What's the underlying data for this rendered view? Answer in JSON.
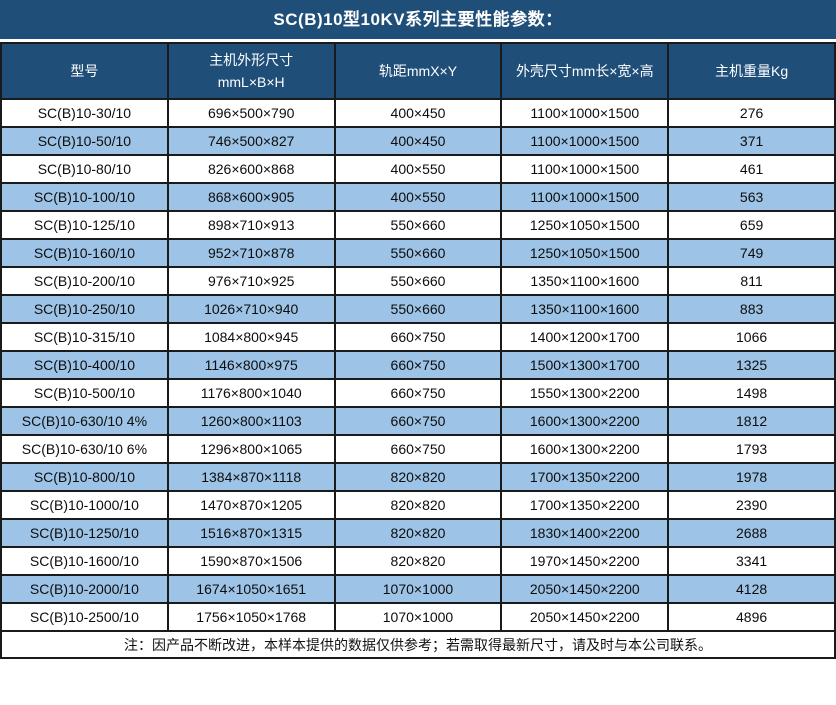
{
  "title": "SC(B)10型10KV系列主要性能参数：",
  "colors": {
    "header_bg": "#1F4E79",
    "alt_row_bg": "#9DC3E6",
    "border": "#1A1A1A",
    "header_text": "#FFFFFF",
    "body_text": "#0D0D0D"
  },
  "table": {
    "columns": [
      "型号",
      "主机外形尺寸\nmmL×B×H",
      "轨距mmX×Y",
      "外壳尺寸mm长×宽×高",
      "主机重量Kg"
    ],
    "rows": [
      [
        "SC(B)10-30/10",
        "696×500×790",
        "400×450",
        "1100×1000×1500",
        "276"
      ],
      [
        "SC(B)10-50/10",
        "746×500×827",
        "400×450",
        "1100×1000×1500",
        "371"
      ],
      [
        "SC(B)10-80/10",
        "826×600×868",
        "400×550",
        "1100×1000×1500",
        "461"
      ],
      [
        "SC(B)10-100/10",
        "868×600×905",
        "400×550",
        "1100×1000×1500",
        "563"
      ],
      [
        "SC(B)10-125/10",
        "898×710×913",
        "550×660",
        "1250×1050×1500",
        "659"
      ],
      [
        "SC(B)10-160/10",
        "952×710×878",
        "550×660",
        "1250×1050×1500",
        "749"
      ],
      [
        "SC(B)10-200/10",
        "976×710×925",
        "550×660",
        "1350×1100×1600",
        "811"
      ],
      [
        "SC(B)10-250/10",
        "1026×710×940",
        "550×660",
        "1350×1100×1600",
        "883"
      ],
      [
        "SC(B)10-315/10",
        "1084×800×945",
        "660×750",
        "1400×1200×1700",
        "1066"
      ],
      [
        "SC(B)10-400/10",
        "1146×800×975",
        "660×750",
        "1500×1300×1700",
        "1325"
      ],
      [
        "SC(B)10-500/10",
        "1176×800×1040",
        "660×750",
        "1550×1300×2200",
        "1498"
      ],
      [
        "SC(B)10-630/10 4%",
        "1260×800×1103",
        "660×750",
        "1600×1300×2200",
        "1812"
      ],
      [
        "SC(B)10-630/10 6%",
        "1296×800×1065",
        "660×750",
        "1600×1300×2200",
        "1793"
      ],
      [
        "SC(B)10-800/10",
        "1384×870×1118",
        "820×820",
        "1700×1350×2200",
        "1978"
      ],
      [
        "SC(B)10-1000/10",
        "1470×870×1205",
        "820×820",
        "1700×1350×2200",
        "2390"
      ],
      [
        "SC(B)10-1250/10",
        "1516×870×1315",
        "820×820",
        "1830×1400×2200",
        "2688"
      ],
      [
        "SC(B)10-1600/10",
        "1590×870×1506",
        "820×820",
        "1970×1450×2200",
        "3341"
      ],
      [
        "SC(B)10-2000/10",
        "1674×1050×1651",
        "1070×1000",
        "2050×1450×2200",
        "4128"
      ],
      [
        "SC(B)10-2500/10",
        "1756×1050×1768",
        "1070×1000",
        "2050×1450×2200",
        "4896"
      ]
    ],
    "note": "注：因产品不断改进，本样本提供的数据仅供参考；若需取得最新尺寸，请及时与本公司联系。"
  }
}
